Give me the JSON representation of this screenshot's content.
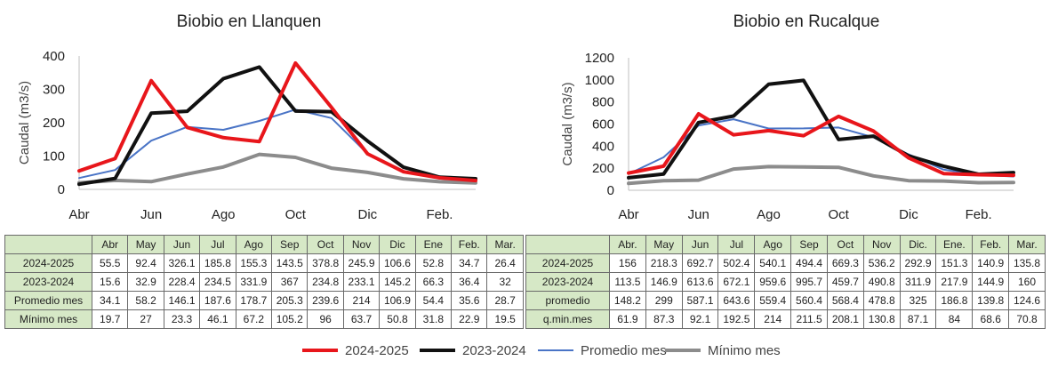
{
  "legend": [
    {
      "label": "2024-2025",
      "color": "#e8161b",
      "width": 4
    },
    {
      "label": "2023-2024",
      "color": "#111111",
      "width": 4
    },
    {
      "label": "Promedio mes",
      "color": "#4a74c6",
      "width": 2
    },
    {
      "label": "Mínimo mes",
      "color": "#8c8c8c",
      "width": 4
    }
  ],
  "chart_data": [
    {
      "type": "line",
      "title": "Biobio en Llanquen",
      "ylabel": "Caudal (m3/s)",
      "ylim": [
        0,
        400
      ],
      "yticks": [
        0,
        100,
        200,
        300,
        400
      ],
      "xticks": [
        "Abr",
        "Jun",
        "Ago",
        "Oct",
        "Dic",
        "Feb."
      ],
      "categories": [
        "Abr",
        "May",
        "Jun",
        "Jul",
        "Ago",
        "Sep",
        "Oct",
        "Nov",
        "Dic",
        "Ene",
        "Feb.",
        "Mar."
      ],
      "series": [
        {
          "name": "2024-2025",
          "color": "#e8161b",
          "values": [
            55.5,
            92.4,
            326.1,
            185.8,
            155.3,
            143.5,
            378.8,
            245.9,
            106.6,
            52.8,
            34.7,
            26.4
          ]
        },
        {
          "name": "2023-2024",
          "color": "#111111",
          "values": [
            15.6,
            32.9,
            228.4,
            234.5,
            331.9,
            367,
            234.8,
            233.1,
            145.2,
            66.3,
            36.4,
            32
          ]
        },
        {
          "name": "Promedio mes",
          "color": "#4a74c6",
          "values": [
            34.1,
            58.2,
            146.1,
            187.6,
            178.7,
            205.3,
            239.6,
            214,
            106.9,
            54.4,
            35.6,
            28.7
          ]
        },
        {
          "name": "Mínimo mes",
          "color": "#8c8c8c",
          "values": [
            19.7,
            27,
            23.3,
            46.1,
            67.2,
            105.2,
            96,
            63.7,
            50.8,
            31.8,
            22.9,
            19.5
          ]
        }
      ]
    },
    {
      "type": "line",
      "title": "Biobio en Rucalque",
      "ylabel": "Caudal (m3/s)",
      "ylim": [
        0,
        1200
      ],
      "yticks": [
        0,
        200,
        400,
        600,
        800,
        1000,
        1200
      ],
      "xticks": [
        "Abr",
        "Jun",
        "Ago",
        "Oct",
        "Dic",
        "Feb."
      ],
      "categories": [
        "Abr.",
        "May",
        "Jun",
        "Jul",
        "Ago",
        "Sep",
        "Oct",
        "Nov",
        "Dic.",
        "Ene.",
        "Feb.",
        "Mar."
      ],
      "series": [
        {
          "name": "2024-2025",
          "color": "#e8161b",
          "values": [
            156,
            218.3,
            692.7,
            502.4,
            540.1,
            494.4,
            669.3,
            536.2,
            292.9,
            151.3,
            140.9,
            135.8
          ]
        },
        {
          "name": "2023-2024",
          "color": "#111111",
          "values": [
            113.5,
            146.9,
            613.6,
            672.1,
            959.6,
            995.7,
            459.7,
            490.8,
            311.9,
            217.9,
            144.9,
            160
          ]
        },
        {
          "name": "promedio",
          "color": "#4a74c6",
          "values": [
            148.2,
            299,
            587.1,
            643.6,
            559.4,
            560.4,
            568.4,
            478.8,
            325,
            186.8,
            139.8,
            124.6
          ]
        },
        {
          "name": "q.min.mes",
          "color": "#8c8c8c",
          "values": [
            61.9,
            87.3,
            92.1,
            192.5,
            214,
            211.5,
            208.1,
            130.8,
            87.1,
            84,
            68.6,
            70.8
          ]
        }
      ]
    }
  ]
}
